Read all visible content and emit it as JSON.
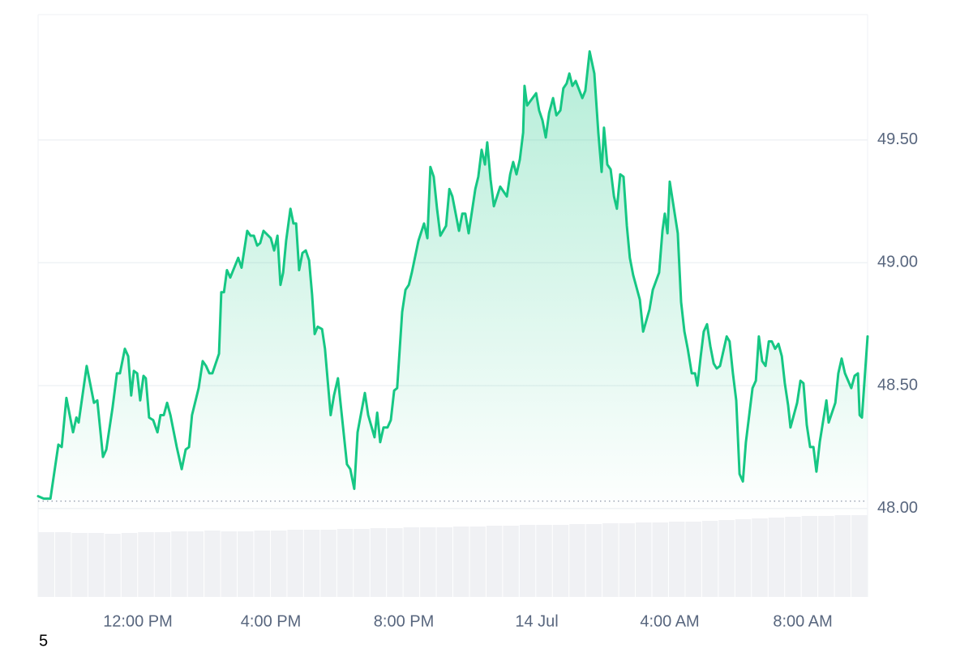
{
  "chart_data": {
    "type": "line",
    "x": [
      9,
      9.17,
      9.37,
      9.61,
      9.71,
      9.85,
      10.05,
      10.15,
      10.22,
      10.46,
      10.68,
      10.78,
      10.95,
      11.05,
      11.24,
      11.37,
      11.46,
      11.61,
      11.71,
      11.8,
      11.88,
      11.98,
      12.07,
      12.17,
      12.24,
      12.34,
      12.46,
      12.59,
      12.68,
      12.78,
      12.88,
      12.98,
      13.17,
      13.32,
      13.44,
      13.54,
      13.63,
      13.83,
      13.95,
      14.05,
      14.15,
      14.24,
      14.44,
      14.51,
      14.59,
      14.68,
      14.78,
      15.02,
      15.12,
      15.29,
      15.39,
      15.49,
      15.59,
      15.68,
      15.78,
      16,
      16.1,
      16.2,
      16.29,
      16.37,
      16.46,
      16.59,
      16.68,
      16.76,
      16.85,
      16.95,
      17.05,
      17.15,
      17.24,
      17.32,
      17.41,
      17.54,
      17.63,
      17.8,
      17.9,
      18.02,
      18.12,
      18.29,
      18.39,
      18.51,
      18.61,
      18.83,
      18.93,
      19.12,
      19.2,
      19.29,
      19.39,
      19.51,
      19.61,
      19.71,
      19.8,
      19.95,
      20.05,
      20.15,
      20.24,
      20.44,
      20.61,
      20.71,
      20.8,
      20.9,
      21,
      21.1,
      21.27,
      21.37,
      21.46,
      21.66,
      21.76,
      21.85,
      21.95,
      22.15,
      22.24,
      22.34,
      22.44,
      22.51,
      22.61,
      22.71,
      22.9,
      23.1,
      23.2,
      23.29,
      23.39,
      23.49,
      23.59,
      23.63,
      23.71,
      23.98,
      24.07,
      24.17,
      24.27,
      24.37,
      24.49,
      24.59,
      24.71,
      24.8,
      24.9,
      24.98,
      25.07,
      25.17,
      25.37,
      25.46,
      25.59,
      25.73,
      25.85,
      25.95,
      26.02,
      26.12,
      26.22,
      26.32,
      26.41,
      26.51,
      26.61,
      26.71,
      26.8,
      26.9,
      27.1,
      27.2,
      27.39,
      27.49,
      27.68,
      27.78,
      27.85,
      27.93,
      28,
      28.24,
      28.34,
      28.44,
      28.54,
      28.66,
      28.76,
      28.83,
      28.93,
      29.02,
      29.12,
      29.22,
      29.32,
      29.41,
      29.51,
      29.71,
      29.8,
      29.9,
      30,
      30.1,
      30.2,
      30.29,
      30.39,
      30.49,
      30.59,
      30.68,
      30.78,
      30.88,
      30.98,
      31.07,
      31.17,
      31.27,
      31.37,
      31.46,
      31.56,
      31.63,
      31.83,
      31.93,
      32.02,
      32.12,
      32.22,
      32.32,
      32.41,
      32.51,
      32.71,
      32.78,
      32.98,
      33.07,
      33.17,
      33.27,
      33.46,
      33.56,
      33.66,
      33.71,
      33.78,
      33.95
    ],
    "values": [
      48.05,
      48.04,
      48.04,
      48.26,
      48.25,
      48.45,
      48.31,
      48.37,
      48.35,
      48.58,
      48.43,
      48.44,
      48.21,
      48.24,
      48.41,
      48.55,
      48.55,
      48.65,
      48.62,
      48.46,
      48.56,
      48.55,
      48.44,
      48.54,
      48.53,
      48.37,
      48.36,
      48.31,
      48.38,
      48.38,
      48.43,
      48.38,
      48.25,
      48.16,
      48.24,
      48.25,
      48.38,
      48.49,
      48.6,
      48.58,
      48.55,
      48.55,
      48.63,
      48.88,
      48.88,
      48.97,
      48.94,
      49.02,
      48.98,
      49.13,
      49.11,
      49.11,
      49.07,
      49.08,
      49.13,
      49.1,
      49.05,
      49.11,
      48.91,
      48.96,
      49.09,
      49.22,
      49.16,
      49.16,
      48.97,
      49.04,
      49.05,
      49.01,
      48.87,
      48.71,
      48.74,
      48.73,
      48.65,
      48.38,
      48.46,
      48.53,
      48.4,
      48.18,
      48.16,
      48.08,
      48.31,
      48.47,
      48.38,
      48.29,
      48.39,
      48.27,
      48.33,
      48.33,
      48.36,
      48.48,
      48.49,
      48.8,
      48.89,
      48.91,
      48.96,
      49.09,
      49.16,
      49.1,
      49.39,
      49.35,
      49.22,
      49.11,
      49.15,
      49.3,
      49.27,
      49.13,
      49.2,
      49.2,
      49.12,
      49.3,
      49.35,
      49.46,
      49.4,
      49.49,
      49.34,
      49.23,
      49.31,
      49.27,
      49.36,
      49.41,
      49.36,
      49.42,
      49.53,
      49.72,
      49.64,
      49.69,
      49.62,
      49.58,
      49.51,
      49.61,
      49.67,
      49.6,
      49.62,
      49.71,
      49.73,
      49.77,
      49.72,
      49.74,
      49.67,
      49.7,
      49.86,
      49.77,
      49.53,
      49.37,
      49.55,
      49.4,
      49.38,
      49.27,
      49.22,
      49.36,
      49.35,
      49.15,
      49.02,
      48.95,
      48.85,
      48.72,
      48.81,
      48.89,
      48.96,
      49.13,
      49.2,
      49.12,
      49.33,
      49.12,
      48.84,
      48.72,
      48.65,
      48.55,
      48.55,
      48.5,
      48.62,
      48.72,
      48.75,
      48.66,
      48.59,
      48.57,
      48.58,
      48.7,
      48.68,
      48.55,
      48.44,
      48.14,
      48.11,
      48.27,
      48.38,
      48.49,
      48.52,
      48.7,
      48.6,
      48.58,
      48.68,
      48.68,
      48.65,
      48.67,
      48.62,
      48.51,
      48.42,
      48.33,
      48.43,
      48.52,
      48.51,
      48.34,
      48.25,
      48.25,
      48.15,
      48.27,
      48.44,
      48.35,
      48.43,
      48.55,
      48.61,
      48.55,
      48.49,
      48.54,
      48.55,
      48.38,
      48.37,
      48.7
    ],
    "color": "#16c784",
    "xlim": [
      9,
      33.95
    ],
    "xticks": [
      {
        "value": 12,
        "label": "12:00 PM"
      },
      {
        "value": 16,
        "label": "4:00 PM"
      },
      {
        "value": 20,
        "label": "8:00 PM"
      },
      {
        "value": 24,
        "label": "14 Jul"
      },
      {
        "value": 28,
        "label": "4:00 AM"
      },
      {
        "value": 32,
        "label": "8:00 AM"
      }
    ],
    "ylim": [
      47.64,
      50.01
    ],
    "yticks": [
      {
        "value": 48,
        "label": "48.00"
      },
      {
        "value": 48.5,
        "label": "48.50"
      },
      {
        "value": 49,
        "label": "49.00"
      },
      {
        "value": 49.5,
        "label": "49.50"
      }
    ],
    "reference_line": 48.03,
    "grid": true,
    "volume": {
      "color": "#e6e8ec",
      "ylim": [
        0,
        110
      ],
      "values": [
        80,
        80,
        79,
        79,
        78,
        79,
        80,
        80,
        81,
        81,
        82,
        81,
        81,
        82,
        82,
        83,
        83,
        83,
        84,
        84,
        85,
        85,
        86,
        86,
        86,
        87,
        87,
        88,
        88,
        89,
        89,
        89,
        90,
        90,
        91,
        91,
        92,
        92,
        93,
        93,
        94,
        95,
        96,
        97,
        98,
        99,
        100,
        100,
        101,
        101
      ]
    },
    "footnote": "5"
  }
}
